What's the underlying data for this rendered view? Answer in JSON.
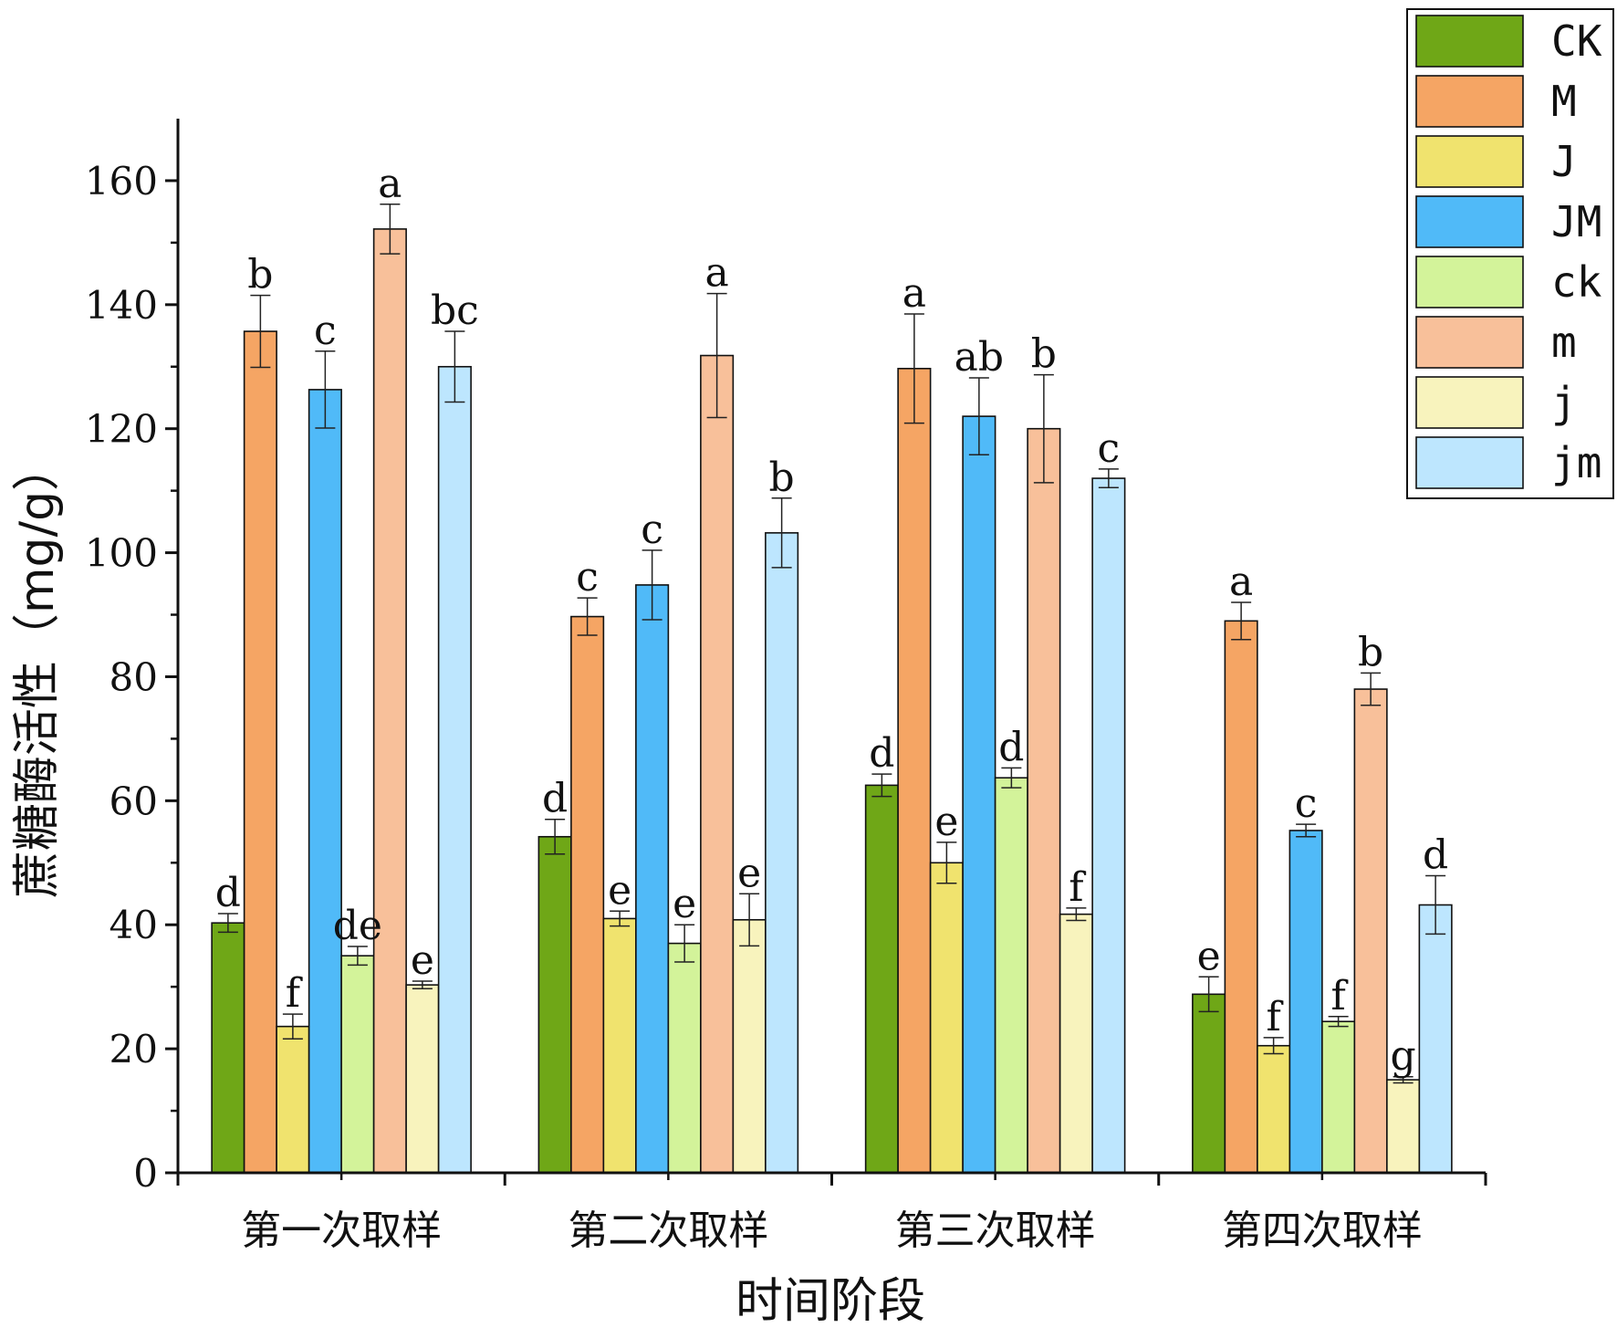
{
  "chart_data": {
    "type": "bar",
    "title": "",
    "xlabel": "时间阶段",
    "ylabel": "蔗糖酶活性（mg/g）",
    "ylim": [
      0,
      170
    ],
    "yticks": [
      0,
      20,
      40,
      60,
      80,
      100,
      120,
      140,
      160
    ],
    "grid": false,
    "legend_position": "top-right",
    "categories": [
      "第一次取样",
      "第二次取样",
      "第三次取样",
      "第四次取样"
    ],
    "series": [
      {
        "name": "CK",
        "color": "#6fa717",
        "values": [
          40.3,
          54.2,
          62.5,
          28.8
        ],
        "errors": [
          1.5,
          2.8,
          1.8,
          2.8
        ],
        "letters": [
          "d",
          "d",
          "d",
          "e"
        ]
      },
      {
        "name": "M",
        "color": "#f5a564",
        "values": [
          135.7,
          89.7,
          129.7,
          89.0
        ],
        "errors": [
          5.8,
          3.0,
          8.8,
          3.0
        ],
        "letters": [
          "b",
          "c",
          "a",
          "a"
        ]
      },
      {
        "name": "J",
        "color": "#f0e36e",
        "values": [
          23.6,
          41.0,
          50.0,
          20.5
        ],
        "errors": [
          2.0,
          1.2,
          3.3,
          1.3
        ],
        "letters": [
          "f",
          "e",
          "e",
          "f"
        ]
      },
      {
        "name": "JM",
        "color": "#50baf8",
        "values": [
          126.3,
          94.8,
          122.0,
          55.2
        ],
        "errors": [
          6.2,
          5.6,
          6.2,
          1.0
        ],
        "letters": [
          "c",
          "c",
          "ab",
          "c"
        ]
      },
      {
        "name": "ck",
        "color": "#d3f39a",
        "values": [
          35.0,
          37.0,
          63.7,
          24.4
        ],
        "errors": [
          1.5,
          3.0,
          1.6,
          0.8
        ],
        "letters": [
          "de",
          "e",
          "d",
          "f"
        ]
      },
      {
        "name": "m",
        "color": "#f8c09a",
        "values": [
          152.2,
          131.8,
          120.0,
          78.0
        ],
        "errors": [
          4.0,
          10.0,
          8.7,
          2.6
        ],
        "letters": [
          "a",
          "a",
          "b",
          "b"
        ]
      },
      {
        "name": "j",
        "color": "#f8f3bd",
        "values": [
          30.3,
          40.8,
          41.7,
          15.0
        ],
        "errors": [
          0.6,
          4.2,
          1.0,
          0.5
        ],
        "letters": [
          "e",
          "e",
          "f",
          "g"
        ]
      },
      {
        "name": "jm",
        "color": "#bde6fe",
        "values": [
          130.0,
          103.2,
          112.0,
          43.2
        ],
        "errors": [
          5.7,
          5.6,
          1.5,
          4.7
        ],
        "letters": [
          "bc",
          "b",
          "c",
          "d"
        ]
      }
    ]
  }
}
